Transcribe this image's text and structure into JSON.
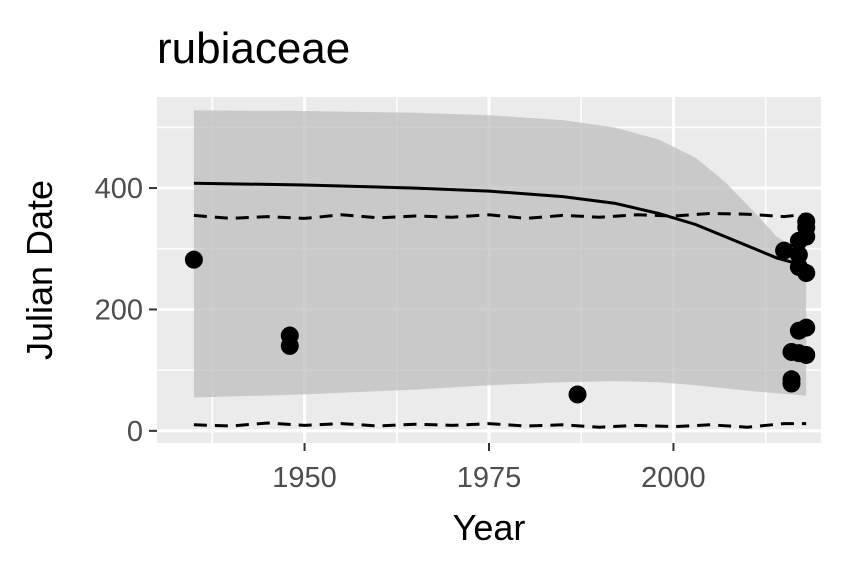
{
  "chart_data": {
    "type": "scatter",
    "title": "rubiaceae",
    "xlabel": "Year",
    "ylabel": "Julian Date",
    "xlim": [
      1930,
      2020
    ],
    "ylim": [
      -20,
      550
    ],
    "x_ticks": [
      1950,
      1975,
      2000
    ],
    "x_minor_ticks": [
      1937.5,
      1962.5,
      1987.5,
      2012.5
    ],
    "y_ticks": [
      0,
      200,
      400
    ],
    "y_minor_ticks": [
      100,
      300,
      500
    ],
    "x_tick_labels": [
      "1950",
      "1975",
      "2000"
    ],
    "y_tick_labels": [
      "0",
      "200",
      "400"
    ],
    "grid": true,
    "colors": {
      "panel": "#ebebeb",
      "grid": "#ffffff",
      "ribbon": "#bdbdbd",
      "points": "#000000",
      "lines": "#000000"
    },
    "points": [
      {
        "x": 1935,
        "y": 282
      },
      {
        "x": 1948,
        "y": 157
      },
      {
        "x": 1948,
        "y": 140
      },
      {
        "x": 1987,
        "y": 60
      },
      {
        "x": 2015,
        "y": 297
      },
      {
        "x": 2016,
        "y": 130
      },
      {
        "x": 2016,
        "y": 85
      },
      {
        "x": 2016,
        "y": 78
      },
      {
        "x": 2017,
        "y": 313
      },
      {
        "x": 2017,
        "y": 290
      },
      {
        "x": 2017,
        "y": 270
      },
      {
        "x": 2017,
        "y": 165
      },
      {
        "x": 2017,
        "y": 128
      },
      {
        "x": 2018,
        "y": 345
      },
      {
        "x": 2018,
        "y": 335
      },
      {
        "x": 2018,
        "y": 320
      },
      {
        "x": 2018,
        "y": 260
      },
      {
        "x": 2018,
        "y": 170
      },
      {
        "x": 2018,
        "y": 125
      }
    ],
    "fit_line": {
      "x": [
        1935,
        1950,
        1965,
        1975,
        1985,
        1992,
        1998,
        2003,
        2007,
        2011,
        2014,
        2016,
        2018
      ],
      "y": [
        408,
        405,
        400,
        395,
        386,
        375,
        358,
        340,
        320,
        300,
        285,
        278,
        272
      ]
    },
    "ribbon": {
      "x": [
        1935,
        1950,
        1965,
        1975,
        1985,
        1992,
        1998,
        2003,
        2007,
        2011,
        2014,
        2016,
        2018
      ],
      "upper": [
        528,
        527,
        524,
        520,
        512,
        500,
        480,
        450,
        410,
        360,
        320,
        305,
        300
      ],
      "lower": [
        55,
        60,
        68,
        75,
        80,
        82,
        80,
        75,
        70,
        65,
        62,
        60,
        58
      ]
    },
    "dashed_upper": {
      "x": [
        1935,
        1940,
        1945,
        1950,
        1955,
        1960,
        1965,
        1970,
        1975,
        1980,
        1985,
        1990,
        1995,
        2000,
        2005,
        2010,
        2015,
        2018
      ],
      "y": [
        355,
        350,
        353,
        350,
        356,
        351,
        354,
        352,
        356,
        350,
        355,
        352,
        356,
        354,
        358,
        357,
        353,
        357
      ]
    },
    "dashed_lower": {
      "x": [
        1935,
        1940,
        1945,
        1950,
        1955,
        1960,
        1965,
        1970,
        1975,
        1980,
        1985,
        1990,
        1995,
        2000,
        2005,
        2010,
        2015,
        2018
      ],
      "y": [
        10,
        8,
        13,
        9,
        12,
        8,
        11,
        9,
        12,
        8,
        10,
        6,
        9,
        7,
        10,
        6,
        12,
        12
      ]
    }
  }
}
